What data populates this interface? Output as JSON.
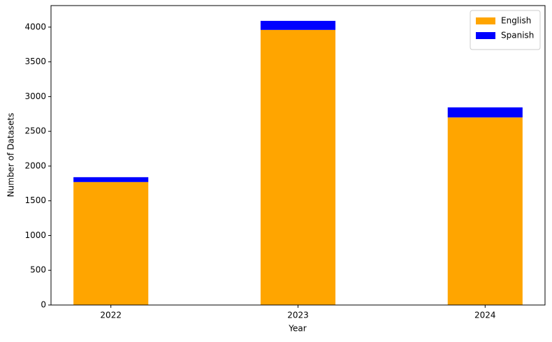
{
  "chart_data": {
    "type": "stacked_bar",
    "x_label": "Year",
    "y_label": "Number of Datasets",
    "categories": [
      "2022",
      "2023",
      "2024"
    ],
    "series": [
      {
        "name": "English",
        "color": "#ffa500",
        "values": [
          1770,
          3960,
          2700
        ]
      },
      {
        "name": "Spanish",
        "color": "#0000ff",
        "values": [
          70,
          130,
          145
        ]
      }
    ],
    "ylim": [
      0,
      4310
    ],
    "yticks": [
      0,
      500,
      1000,
      1500,
      2000,
      2500,
      3000,
      3500,
      4000
    ],
    "legend": "upper right"
  }
}
